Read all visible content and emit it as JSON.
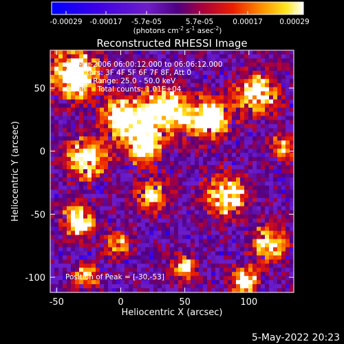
{
  "chart_data": {
    "type": "heatmap",
    "title": "Reconstructed RHESSI Image",
    "xlabel": "Heliocentric X (arcsec)",
    "ylabel": "Heliocentric Y (arcsec)",
    "xlim": [
      -55,
      135
    ],
    "ylim": [
      -112,
      80
    ],
    "xticks": [
      -50,
      0,
      50,
      100
    ],
    "yticks": [
      -100,
      -50,
      0,
      50
    ],
    "colorbar": {
      "ticks": [
        "-0.00029",
        "-0.00017",
        "-5.7e-05",
        "5.7e-05",
        "0.00017",
        "0.00029"
      ],
      "min": -0.00029,
      "max": 0.00029,
      "label": "(photons cm",
      "label_sup1": "-2",
      "label_mid": " s",
      "label_sup2": "-1",
      "label_mid2": " asec",
      "label_sup3": "-2",
      "label_end": ")"
    },
    "annotations": [
      "19-Mar-2006 06:00:12.000 to 06:06:12.000",
      "Detectors: 3F 4F 5F 6F 7F 8F, Att 0",
      "Energy Range: 25.0 - 50.0 keV",
      "Clean     Total counts: 1.01E+04"
    ],
    "peak_label": "Position of Peak = [-30,-53]",
    "timestamp": "5-May-2022 20:23",
    "grid": false
  }
}
